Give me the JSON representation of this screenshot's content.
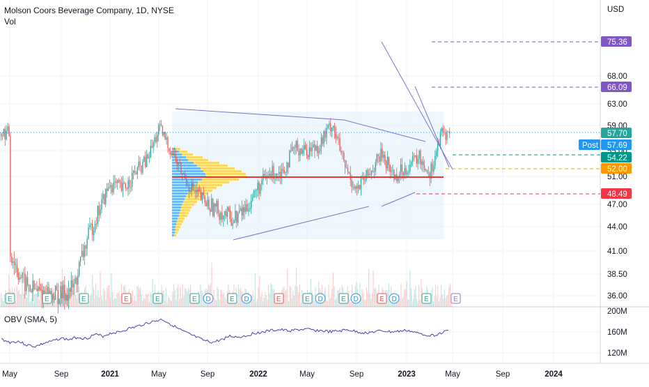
{
  "header": {
    "title": "Molson Coors Beverage Company, 1D, NYSE",
    "vol_label": "Vol",
    "currency": "USD"
  },
  "obv": {
    "label": "OBV (SMA, 5)"
  },
  "chart_data": [
    {
      "type": "candlestick",
      "title": "Molson Coors Beverage Company, 1D, NYSE",
      "ylabel": "USD",
      "y_ticks": [
        36.0,
        38.5,
        41.0,
        44.0,
        47.0,
        51.0,
        55.0,
        59.0,
        63.0,
        68.0
      ],
      "x_ticks": [
        "May",
        "Sep",
        "2021",
        "May",
        "Sep",
        "2022",
        "May",
        "Sep",
        "2023",
        "May",
        "Sep",
        "2024"
      ],
      "approx_close_path": [
        {
          "x": "2020-05",
          "y": 41.0
        },
        {
          "x": "2020-06",
          "y": 37.5
        },
        {
          "x": "2020-07",
          "y": 36.5
        },
        {
          "x": "2020-09",
          "y": 36.0
        },
        {
          "x": "2020-10",
          "y": 37.0
        },
        {
          "x": "2020-11",
          "y": 42.0
        },
        {
          "x": "2020-12",
          "y": 46.0
        },
        {
          "x": "2021-01",
          "y": 50.0
        },
        {
          "x": "2021-02",
          "y": 49.0
        },
        {
          "x": "2021-03",
          "y": 51.5
        },
        {
          "x": "2021-04",
          "y": 53.5
        },
        {
          "x": "2021-05",
          "y": 58.5
        },
        {
          "x": "2021-06",
          "y": 55.0
        },
        {
          "x": "2021-07",
          "y": 51.0
        },
        {
          "x": "2021-08",
          "y": 48.5
        },
        {
          "x": "2021-09",
          "y": 47.0
        },
        {
          "x": "2021-10",
          "y": 46.0
        },
        {
          "x": "2021-11",
          "y": 45.0
        },
        {
          "x": "2021-12",
          "y": 46.5
        },
        {
          "x": "2022-01",
          "y": 49.5
        },
        {
          "x": "2022-02",
          "y": 51.5
        },
        {
          "x": "2022-03",
          "y": 52.0
        },
        {
          "x": "2022-04",
          "y": 55.5
        },
        {
          "x": "2022-05",
          "y": 55.0
        },
        {
          "x": "2022-06",
          "y": 56.0
        },
        {
          "x": "2022-07",
          "y": 59.5
        },
        {
          "x": "2022-08",
          "y": 52.5
        },
        {
          "x": "2022-09",
          "y": 49.0
        },
        {
          "x": "2022-10",
          "y": 51.5
        },
        {
          "x": "2022-11",
          "y": 54.5
        },
        {
          "x": "2022-12",
          "y": 51.0
        },
        {
          "x": "2023-01",
          "y": 52.5
        },
        {
          "x": "2023-02",
          "y": 54.0
        },
        {
          "x": "2023-03",
          "y": 51.5
        },
        {
          "x": "2023-04",
          "y": 57.7
        }
      ],
      "price_levels": [
        {
          "value": "75.36",
          "color": "#7e57c2"
        },
        {
          "value": "66.09",
          "color": "#7e57c2"
        },
        {
          "value": "57.70",
          "color": "#26a69a"
        },
        {
          "value": "57.69",
          "color": "#2196f3",
          "label": "Post"
        },
        {
          "value": "54.22",
          "color": "#009688"
        },
        {
          "value": "52.00",
          "color": "#ff9800"
        },
        {
          "value": "48.49",
          "color": "#f23645"
        }
      ],
      "earnings_markers": [
        "E",
        "E",
        "E",
        "E",
        "E",
        "E",
        "E",
        "E",
        "E",
        "E",
        "E",
        "E"
      ],
      "dividend_markers": [
        "D",
        "D",
        "D",
        "D",
        "D",
        "D",
        "D"
      ],
      "colors": {
        "up": "#26a69a",
        "down": "#ef5350"
      }
    },
    {
      "type": "line",
      "title": "OBV (SMA, 5)",
      "y_ticks": [
        "120M",
        "160M",
        "200M"
      ],
      "series": [
        {
          "values_M": [
            146,
            140,
            142,
            135,
            132,
            138,
            142,
            148,
            145,
            150,
            147,
            155,
            152,
            158,
            160,
            166,
            170,
            176,
            180,
            184,
            175,
            165,
            157,
            150,
            143,
            140,
            145,
            152,
            150,
            153,
            158,
            160,
            163,
            164,
            162,
            164,
            165,
            163,
            162,
            160,
            162,
            164,
            160,
            158,
            160,
            162,
            160,
            161,
            163,
            158,
            155,
            153,
            158,
            164
          ]
        }
      ]
    }
  ]
}
